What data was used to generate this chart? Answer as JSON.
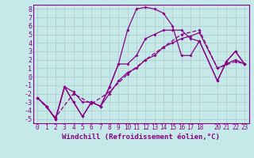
{
  "xlabel": "Windchill (Refroidissement éolien,°C)",
  "bg_color": "#c5e8e8",
  "line_color": "#880088",
  "grid_color": "#b0c8c8",
  "xlim": [
    -0.5,
    23.5
  ],
  "ylim": [
    -5.5,
    8.5
  ],
  "xticks": [
    0,
    1,
    2,
    3,
    4,
    5,
    6,
    7,
    8,
    9,
    10,
    11,
    12,
    13,
    14,
    15,
    16,
    17,
    18,
    20,
    21,
    22,
    23
  ],
  "yticks": [
    -5,
    -4,
    -3,
    -2,
    -1,
    0,
    1,
    2,
    3,
    4,
    5,
    6,
    7,
    8
  ],
  "line1_x": [
    0,
    1,
    2,
    3,
    4,
    5,
    6,
    7,
    8,
    9,
    10,
    11,
    12,
    13,
    14,
    15,
    16,
    17,
    18,
    20,
    21,
    22,
    23
  ],
  "line1_y": [
    -2.5,
    -3.5,
    -5.0,
    -1.2,
    -3.0,
    -4.7,
    -3.0,
    -3.5,
    -1.2,
    1.5,
    5.5,
    8.0,
    8.2,
    8.0,
    7.5,
    6.0,
    2.5,
    2.5,
    4.2,
    -0.5,
    1.8,
    3.0,
    1.5
  ],
  "line2_x": [
    0,
    1,
    2,
    3,
    4,
    5,
    6,
    7,
    8,
    9,
    10,
    11,
    12,
    13,
    14,
    15,
    16,
    17,
    18,
    20,
    21,
    22,
    23
  ],
  "line2_y": [
    -2.5,
    -3.5,
    -5.0,
    -1.2,
    -3.0,
    -4.7,
    -3.0,
    -3.5,
    -1.2,
    1.5,
    1.5,
    2.5,
    4.5,
    5.0,
    5.5,
    5.5,
    5.5,
    4.5,
    4.2,
    -0.5,
    1.8,
    3.0,
    1.5
  ],
  "line3_x": [
    0,
    1,
    2,
    3,
    4,
    5,
    6,
    7,
    8,
    9,
    10,
    11,
    12,
    13,
    14,
    15,
    16,
    17,
    18,
    20,
    21,
    22,
    23
  ],
  "line3_y": [
    -2.5,
    -3.5,
    -5.0,
    -1.2,
    -1.8,
    -3.0,
    -3.0,
    -3.5,
    -2.0,
    -0.5,
    0.5,
    1.0,
    2.0,
    2.5,
    3.5,
    4.0,
    4.5,
    4.8,
    5.2,
    1.0,
    1.5,
    2.0,
    1.5
  ],
  "line4_x": [
    0,
    2,
    4,
    6,
    8,
    10,
    12,
    14,
    16,
    18,
    20,
    22,
    23
  ],
  "line4_y": [
    -2.5,
    -4.8,
    -2.0,
    -3.2,
    -1.8,
    0.3,
    2.0,
    3.5,
    5.0,
    5.5,
    1.0,
    1.8,
    1.5
  ],
  "font_size_xlabel": 6.5,
  "font_size_yticks": 6,
  "font_size_xticks": 5.5
}
